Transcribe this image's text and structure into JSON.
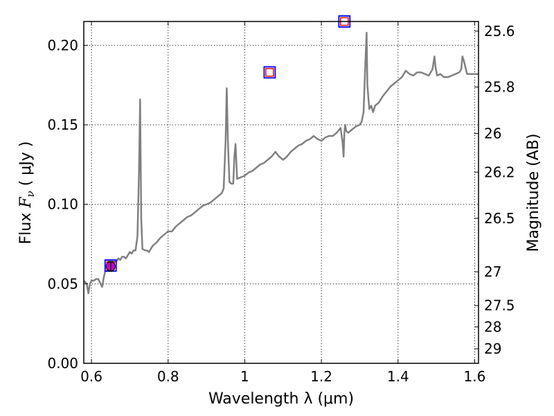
{
  "chart_data": {
    "type": "line",
    "xlabel": "Wavelength  λ (μm)",
    "ylabel": "Flux  F_ν  ( μJy )",
    "ylabel_right": "Magnitude (AB)",
    "xlim": [
      0.58,
      1.61
    ],
    "ylim": [
      0.0,
      0.215
    ],
    "grid": true,
    "x_ticks": [
      {
        "value": 0.6,
        "label": "0.6"
      },
      {
        "value": 0.8,
        "label": "0.8"
      },
      {
        "value": 1.0,
        "label": "1"
      },
      {
        "value": 1.2,
        "label": "1.2"
      },
      {
        "value": 1.4,
        "label": "1.4"
      },
      {
        "value": 1.6,
        "label": "1.6"
      }
    ],
    "y_ticks": [
      {
        "value": 0.0,
        "label": "0.00"
      },
      {
        "value": 0.05,
        "label": "0.05"
      },
      {
        "value": 0.1,
        "label": "0.10"
      },
      {
        "value": 0.15,
        "label": "0.15"
      },
      {
        "value": 0.2,
        "label": "0.20"
      }
    ],
    "right_ticks": [
      {
        "value": 25.6,
        "label": "25.6"
      },
      {
        "value": 25.8,
        "label": "25.8"
      },
      {
        "value": 26.0,
        "label": "26"
      },
      {
        "value": 26.2,
        "label": "26.2"
      },
      {
        "value": 26.5,
        "label": "26.5"
      },
      {
        "value": 27.0,
        "label": "27"
      },
      {
        "value": 27.5,
        "label": "27.5"
      },
      {
        "value": 28.0,
        "label": "28"
      },
      {
        "value": 29.0,
        "label": "29"
      }
    ],
    "series": [
      {
        "type": "line",
        "color": "#808080",
        "x": [
          0.58,
          0.588,
          0.592,
          0.596,
          0.6,
          0.606,
          0.612,
          0.618,
          0.624,
          0.628,
          0.632,
          0.636,
          0.64,
          0.645,
          0.65,
          0.655,
          0.66,
          0.665,
          0.67,
          0.675,
          0.68,
          0.685,
          0.69,
          0.695,
          0.7,
          0.705,
          0.71,
          0.715,
          0.72,
          0.724,
          0.727,
          0.73,
          0.733,
          0.74,
          0.745,
          0.75,
          0.76,
          0.77,
          0.78,
          0.79,
          0.8,
          0.81,
          0.82,
          0.83,
          0.84,
          0.85,
          0.86,
          0.87,
          0.88,
          0.89,
          0.9,
          0.91,
          0.92,
          0.93,
          0.94,
          0.945,
          0.95,
          0.953,
          0.956,
          0.96,
          0.965,
          0.97,
          0.973,
          0.976,
          0.98,
          0.99,
          1.0,
          1.01,
          1.02,
          1.03,
          1.04,
          1.05,
          1.06,
          1.07,
          1.08,
          1.09,
          1.1,
          1.11,
          1.12,
          1.13,
          1.14,
          1.15,
          1.16,
          1.17,
          1.18,
          1.19,
          1.2,
          1.21,
          1.22,
          1.23,
          1.24,
          1.25,
          1.255,
          1.258,
          1.26,
          1.262,
          1.265,
          1.27,
          1.28,
          1.29,
          1.3,
          1.305,
          1.31,
          1.315,
          1.318,
          1.32,
          1.325,
          1.33,
          1.335,
          1.34,
          1.35,
          1.36,
          1.37,
          1.38,
          1.39,
          1.4,
          1.41,
          1.42,
          1.43,
          1.44,
          1.45,
          1.46,
          1.47,
          1.48,
          1.49,
          1.495,
          1.498,
          1.502,
          1.51,
          1.52,
          1.53,
          1.54,
          1.55,
          1.56,
          1.565,
          1.568,
          1.572,
          1.58,
          1.59,
          1.6,
          1.61
        ],
        "y": [
          0.052,
          0.05,
          0.044,
          0.05,
          0.052,
          0.052,
          0.053,
          0.053,
          0.05,
          0.048,
          0.054,
          0.058,
          0.058,
          0.06,
          0.062,
          0.063,
          0.064,
          0.064,
          0.066,
          0.065,
          0.067,
          0.067,
          0.066,
          0.068,
          0.07,
          0.069,
          0.071,
          0.071,
          0.08,
          0.12,
          0.166,
          0.09,
          0.072,
          0.071,
          0.071,
          0.07,
          0.074,
          0.076,
          0.079,
          0.081,
          0.083,
          0.083,
          0.086,
          0.088,
          0.09,
          0.092,
          0.093,
          0.095,
          0.097,
          0.099,
          0.1,
          0.101,
          0.103,
          0.105,
          0.107,
          0.11,
          0.14,
          0.173,
          0.14,
          0.114,
          0.113,
          0.113,
          0.13,
          0.138,
          0.116,
          0.117,
          0.118,
          0.12,
          0.121,
          0.123,
          0.125,
          0.126,
          0.128,
          0.13,
          0.133,
          0.13,
          0.128,
          0.13,
          0.133,
          0.135,
          0.137,
          0.138,
          0.14,
          0.141,
          0.143,
          0.141,
          0.14,
          0.142,
          0.143,
          0.143,
          0.145,
          0.148,
          0.14,
          0.13,
          0.145,
          0.15,
          0.146,
          0.145,
          0.147,
          0.149,
          0.15,
          0.152,
          0.158,
          0.19,
          0.208,
          0.175,
          0.16,
          0.162,
          0.158,
          0.162,
          0.164,
          0.168,
          0.171,
          0.174,
          0.176,
          0.178,
          0.18,
          0.184,
          0.182,
          0.181,
          0.183,
          0.183,
          0.182,
          0.181,
          0.185,
          0.193,
          0.186,
          0.181,
          0.182,
          0.18,
          0.18,
          0.181,
          0.182,
          0.183,
          0.185,
          0.193,
          0.19,
          0.182,
          0.182,
          0.182,
          0.182
        ]
      },
      {
        "name": "",
        "type": "scatter",
        "marker": "square",
        "color": "#0000ff",
        "points": [
          {
            "x": 0.65,
            "y": 0.0615
          },
          {
            "x": 1.065,
            "y": 0.183
          },
          {
            "x": 1.26,
            "y": 0.215
          }
        ]
      },
      {
        "name": "",
        "type": "scatter",
        "marker": "square",
        "color": "#ff0000",
        "points": [
          {
            "x": 0.65,
            "y": 0.0615
          },
          {
            "x": 1.065,
            "y": 0.183
          },
          {
            "x": 1.26,
            "y": 0.215
          }
        ]
      },
      {
        "name": "",
        "type": "scatter",
        "marker": "circle",
        "color": "#cc00cc",
        "points": [
          {
            "x": 0.65,
            "y": 0.061,
            "yerr": 0.003
          }
        ]
      }
    ]
  }
}
